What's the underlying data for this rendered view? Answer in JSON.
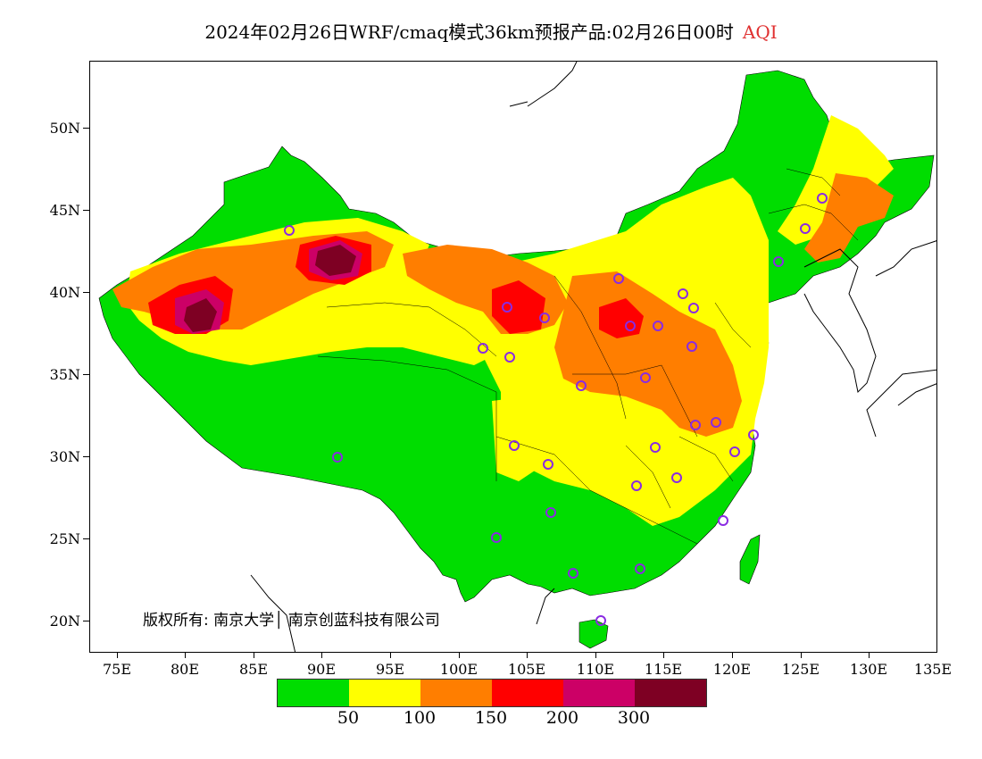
{
  "title": {
    "main": "2024年02月26日WRF/cmaq模式36km预报产品:02月26日00时",
    "variable": "AQI"
  },
  "axes": {
    "lat_labels": [
      "50N",
      "45N",
      "40N",
      "35N",
      "30N",
      "25N",
      "20N"
    ],
    "lon_labels": [
      "75E",
      "80E",
      "85E",
      "90E",
      "95E",
      "100E",
      "105E",
      "110E",
      "115E",
      "120E",
      "125E",
      "130E",
      "135E"
    ]
  },
  "copyright": "版权所有: 南京大学│ 南京创蓝科技有限公司",
  "legend": {
    "colors": [
      "#00dd00",
      "#ffff00",
      "#ff7e00",
      "#ff0000",
      "#cc0066",
      "#7e0023"
    ],
    "thresholds": [
      "50",
      "100",
      "150",
      "200",
      "300"
    ]
  },
  "colors": {
    "good": "#00dd00",
    "moderate": "#ffff00",
    "usg": "#ff7e00",
    "unhealthy": "#ff0000",
    "very_unhealthy": "#cc0066",
    "hazardous": "#7e0023",
    "title_accent": "#e03030",
    "marker": "#8a2be2"
  }
}
